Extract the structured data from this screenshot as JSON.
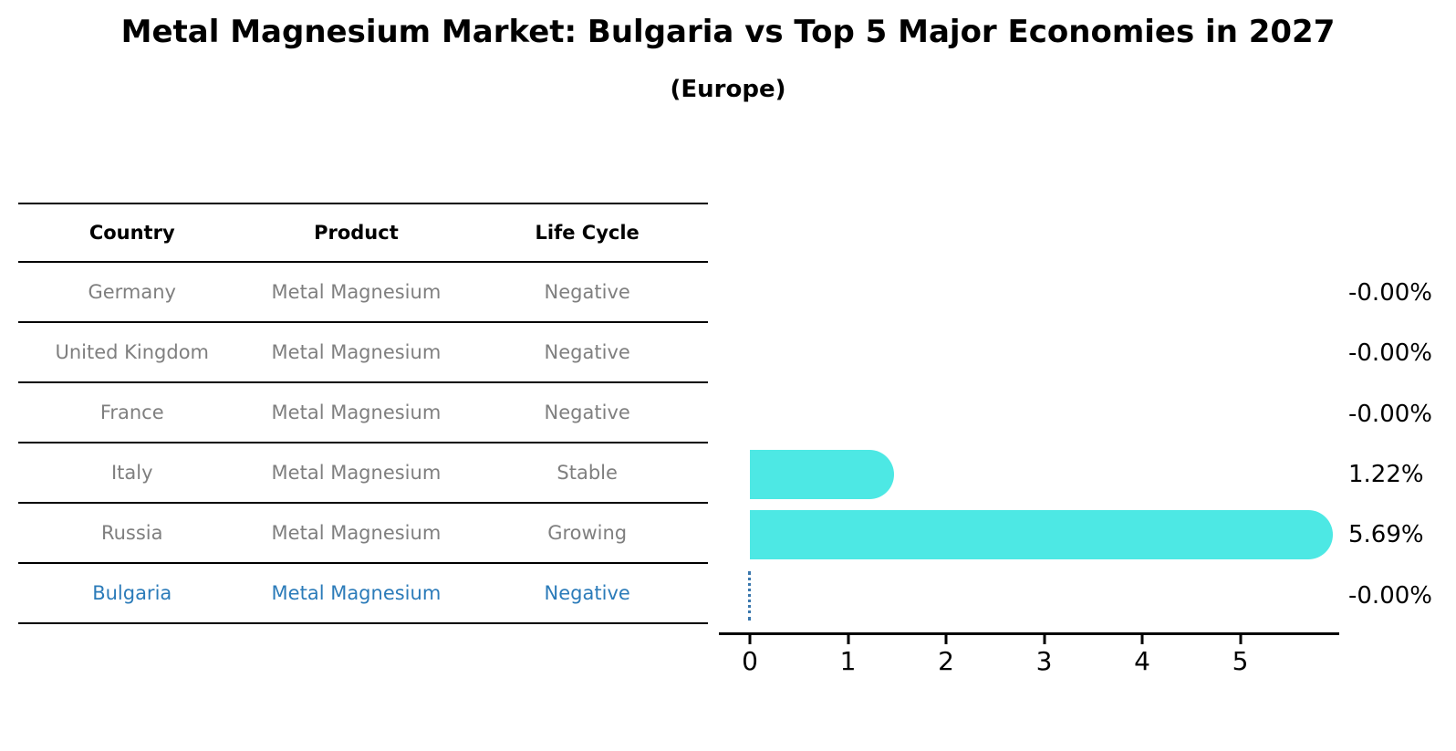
{
  "title": "Metal Magnesium Market: Bulgaria vs Top 5 Major Economies in 2027",
  "subtitle": "(Europe)",
  "table": {
    "headers": [
      "Country",
      "Product",
      "Life Cycle"
    ],
    "rows": [
      {
        "country": "Germany",
        "product": "Metal Magnesium",
        "life_cycle": "Negative"
      },
      {
        "country": "United Kingdom",
        "product": "Metal Magnesium",
        "life_cycle": "Negative"
      },
      {
        "country": "France",
        "product": "Metal Magnesium",
        "life_cycle": "Negative"
      },
      {
        "country": "Italy",
        "product": "Metal Magnesium",
        "life_cycle": "Stable"
      },
      {
        "country": "Russia",
        "product": "Metal Magnesium",
        "life_cycle": "Growing"
      },
      {
        "country": "Bulgaria",
        "product": "Metal Magnesium",
        "life_cycle": "Negative"
      }
    ],
    "highlighted_row": "Bulgaria"
  },
  "chart_data": {
    "type": "bar",
    "orientation": "horizontal",
    "categories": [
      "Germany",
      "United Kingdom",
      "France",
      "Italy",
      "Russia",
      "Bulgaria"
    ],
    "values": [
      -0.0,
      -0.0,
      -0.0,
      1.22,
      5.69,
      -0.0
    ],
    "value_labels": [
      "-0.00%",
      "-0.00%",
      "-0.00%",
      "1.22%",
      "5.69%",
      "-0.00%"
    ],
    "x_ticks": [
      0,
      1,
      2,
      3,
      4,
      5
    ],
    "xlim": [
      0,
      6.1
    ],
    "grid": false,
    "legend": "none",
    "bar_color": "#4DE8E4",
    "highlight_index": 5,
    "highlight_marker": "dotted-line-at-zero",
    "highlight_line_color": "#3a77ad"
  },
  "colors": {
    "background": "#ffffff",
    "heading_text": "#000000",
    "table_text": "#7f7f7f",
    "highlight_text": "#2b7bb9",
    "bar": "#4DE8E4"
  }
}
